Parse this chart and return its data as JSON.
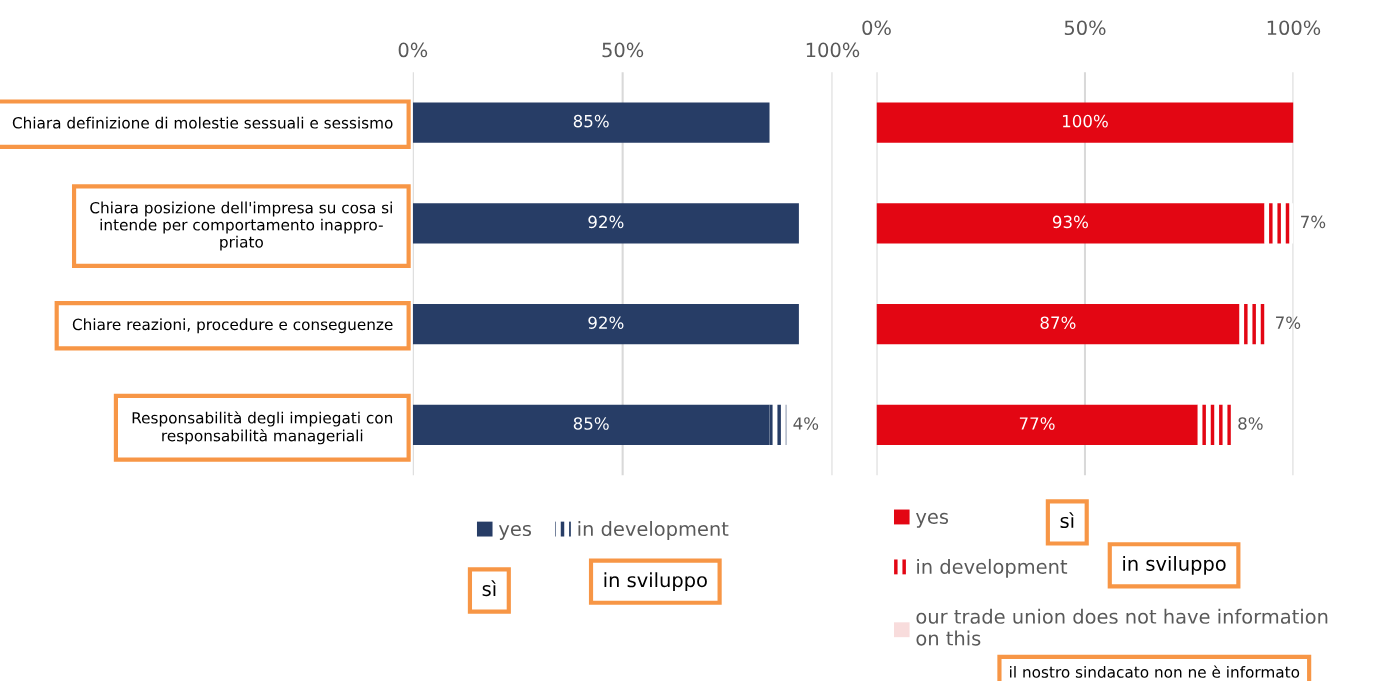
{
  "chart_data": [
    {
      "type": "bar",
      "orientation": "horizontal",
      "stacked": true,
      "grid": "x",
      "legend": "bottom",
      "categories": [
        "Chiara definizione di molestie sessuali e sessismo",
        "Chiara posizione dell'impresa su cosa si\nintende per comportamento inappro-\npriato",
        "Chiare reazioni, procedure e conseguenze",
        "Responsabilità degli impiegati con\nresponsabilità manageriali"
      ],
      "series": [
        {
          "name": "yes",
          "color": "#273d66",
          "values": [
            85,
            92,
            92,
            85
          ],
          "value_labels": [
            "85%",
            "92%",
            "92%",
            "85%"
          ]
        },
        {
          "name": "in development",
          "color": "#273d66",
          "values": [
            null,
            null,
            null,
            4
          ],
          "value_labels": [
            null,
            null,
            null,
            "4%"
          ]
        }
      ],
      "xlim": [
        0,
        100
      ],
      "xticks": [
        {
          "value": 0,
          "label": "0%"
        },
        {
          "value": 50,
          "label": "50%"
        },
        {
          "value": 100,
          "label": "100%"
        }
      ],
      "annotations": [
        "sì",
        "in sviluppo"
      ]
    },
    {
      "type": "bar",
      "orientation": "horizontal",
      "stacked": true,
      "grid": "x",
      "legend": "bottom",
      "tick_labels": "x",
      "categories": [
        null,
        null,
        null,
        null
      ],
      "series": [
        {
          "name": "yes",
          "color": "#e30613",
          "values": [
            100,
            93,
            87,
            77
          ],
          "value_labels": [
            "100%",
            "93%",
            "87%",
            "77%"
          ]
        },
        {
          "name": "in development",
          "color": "#e30613",
          "values": [
            null,
            7,
            7,
            8
          ],
          "value_labels": [
            null,
            "7%",
            "7%",
            "8%"
          ]
        },
        {
          "name": "our trade union does not have information\non this",
          "color": "#f8dcdc",
          "values": [
            null,
            null,
            null,
            null
          ]
        }
      ],
      "xlim": [
        0,
        100
      ],
      "xticks": [
        {
          "value": 0,
          "label": "0%"
        },
        {
          "value": 50,
          "label": "50%"
        },
        {
          "value": 100,
          "label": "100%"
        }
      ],
      "annotations": [
        "sì",
        "in sviluppo",
        "il nostro sindacato non ne è informato"
      ]
    }
  ]
}
